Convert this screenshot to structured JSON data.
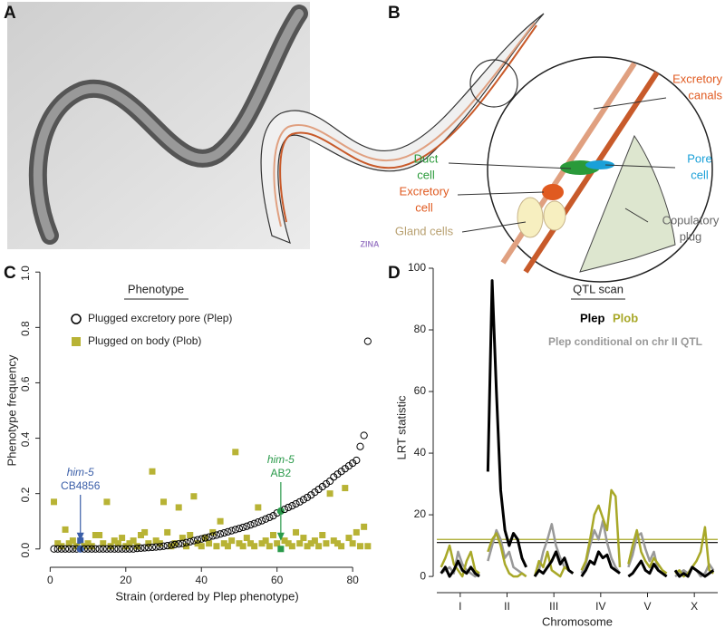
{
  "panels": {
    "a": "A",
    "b": "B",
    "c": "C",
    "d": "D"
  },
  "diagram": {
    "excretory_canals": [
      "Excretory",
      "canals"
    ],
    "pore_cell": [
      "Pore",
      "cell"
    ],
    "duct_cell": [
      "Duct",
      "cell"
    ],
    "excretory_cell": [
      "Excretory",
      "cell"
    ],
    "gland_cells": "Gland cells",
    "copulatory_plug": [
      "Copulatory",
      "plug"
    ],
    "signature": "ZINA"
  },
  "chart_data": [
    {
      "type": "scatter",
      "xlabel": "Strain (ordered by Plep phenotype)",
      "ylabel": "Phenotype frequency",
      "legend_title": "Phenotype",
      "xlim": [
        -2,
        85
      ],
      "xticks": [
        0,
        20,
        40,
        60,
        80
      ],
      "ylim": [
        -0.04,
        1.04
      ],
      "yticks": [
        {
          "value": 0,
          "label": "0.0"
        },
        0.2,
        0.4,
        0.6,
        0.8,
        {
          "value": 1,
          "label": "1.0"
        }
      ],
      "x": [
        1,
        2,
        3,
        4,
        5,
        6,
        7,
        8,
        9,
        10,
        11,
        12,
        13,
        14,
        15,
        16,
        17,
        18,
        19,
        20,
        21,
        22,
        23,
        24,
        25,
        26,
        27,
        28,
        29,
        30,
        31,
        32,
        33,
        34,
        35,
        36,
        37,
        38,
        39,
        40,
        41,
        42,
        43,
        44,
        45,
        46,
        47,
        48,
        49,
        50,
        51,
        52,
        53,
        54,
        55,
        56,
        57,
        58,
        59,
        60,
        61,
        62,
        63,
        64,
        65,
        66,
        67,
        68,
        69,
        70,
        71,
        72,
        73,
        74,
        75,
        76,
        77,
        78,
        79,
        80,
        81,
        82,
        83,
        84
      ],
      "series": [
        {
          "name": "Plugged excretory pore (Plep)",
          "color": "#000000",
          "marker": "circle",
          "values": [
            0,
            0,
            0,
            0,
            0,
            0,
            0,
            0,
            0,
            0,
            0,
            0,
            0,
            0,
            0,
            0,
            0,
            0,
            0,
            0,
            0,
            0,
            0.002,
            0.003,
            0.004,
            0.005,
            0.006,
            0.007,
            0.008,
            0.01,
            0.012,
            0.014,
            0.016,
            0.018,
            0.02,
            0.023,
            0.026,
            0.03,
            0.033,
            0.036,
            0.04,
            0.043,
            0.047,
            0.05,
            0.054,
            0.058,
            0.062,
            0.066,
            0.07,
            0.074,
            0.078,
            0.082,
            0.087,
            0.092,
            0.097,
            0.102,
            0.108,
            0.114,
            0.12,
            0.13,
            0.137,
            0.143,
            0.15,
            0.156,
            0.163,
            0.17,
            0.178,
            0.186,
            0.195,
            0.205,
            0.215,
            0.225,
            0.235,
            0.245,
            0.26,
            0.27,
            0.28,
            0.29,
            0.3,
            0.31,
            0.32,
            0.37,
            0.41,
            0.75
          ]
        },
        {
          "name": "Plugged on body (Plob)",
          "color": "#b8b335",
          "marker": "square",
          "values": [
            0.17,
            0.02,
            0.01,
            0.07,
            0.02,
            0.03,
            0.01,
            0.03,
            0.01,
            0.02,
            0.01,
            0.05,
            0.05,
            0.02,
            0.17,
            0.01,
            0.03,
            0.02,
            0.04,
            0.01,
            0.02,
            0.03,
            0.01,
            0.05,
            0.06,
            0.02,
            0.28,
            0.03,
            0.02,
            0.17,
            0.06,
            0.01,
            0.02,
            0.15,
            0.04,
            0.01,
            0.05,
            0.19,
            0.02,
            0.01,
            0.04,
            0.02,
            0.06,
            0.01,
            0.1,
            0.02,
            0.01,
            0.03,
            0.35,
            0.02,
            0.01,
            0.04,
            0.02,
            0.01,
            0.15,
            0.02,
            0.03,
            0.01,
            0.05,
            0.02,
            0,
            0.03,
            0.02,
            0.01,
            0.06,
            0.02,
            0.04,
            0.01,
            0.02,
            0.03,
            0.01,
            0.05,
            0.02,
            0.2,
            0.03,
            0.02,
            0.01,
            0.22,
            0.04,
            0.02,
            0.06,
            0.01,
            0.08,
            0.01
          ]
        }
      ],
      "annotations": [
        {
          "lines": [
            "him-5",
            "CB4856"
          ],
          "x": 8,
          "color": "#3a5ea8"
        },
        {
          "lines": [
            "him-5",
            "AB2"
          ],
          "x": 61,
          "color": "#2a9a4a"
        }
      ]
    },
    {
      "type": "line",
      "title": "QTL scan",
      "xlabel": "Chromosome",
      "ylabel": "LRT statistic",
      "xlim": [
        -1,
        65
      ],
      "xticks": [
        {
          "value": 4.5,
          "label": "I"
        },
        {
          "value": 15.5,
          "label": "II"
        },
        {
          "value": 26.5,
          "label": "III"
        },
        {
          "value": 37.5,
          "label": "IV"
        },
        {
          "value": 48.5,
          "label": "V"
        },
        {
          "value": 59.5,
          "label": "X"
        }
      ],
      "ylim": [
        -3.5,
        100
      ],
      "yticks": [
        0,
        20,
        40,
        60,
        80,
        100
      ],
      "x": [
        0,
        1,
        2,
        3,
        4,
        5,
        6,
        7,
        8,
        9,
        10,
        11,
        12,
        13,
        14,
        15,
        16,
        17,
        18,
        19,
        20,
        21,
        22,
        23,
        24,
        25,
        26,
        27,
        28,
        29,
        30,
        31,
        32,
        33,
        34,
        35,
        36,
        37,
        38,
        39,
        40,
        41,
        42,
        43,
        44,
        45,
        46,
        47,
        48,
        49,
        50,
        51,
        52,
        53,
        54,
        55,
        56,
        57,
        58,
        59,
        60,
        61,
        62,
        63,
        64
      ],
      "series": [
        {
          "name": "Plep",
          "color": "#000000",
          "values": [
            1,
            3,
            0,
            2,
            5,
            2,
            1,
            3,
            1,
            0,
            null,
            34,
            96,
            60,
            28,
            15,
            10,
            14,
            12,
            6,
            3,
            null,
            0,
            2,
            1,
            3,
            5,
            8,
            4,
            6,
            2,
            1,
            null,
            0,
            2,
            5,
            4,
            8,
            6,
            7,
            3,
            2,
            1,
            null,
            0,
            1,
            3,
            5,
            2,
            1,
            4,
            2,
            1,
            0,
            null,
            2,
            0,
            1,
            0,
            3,
            2,
            1,
            0,
            1,
            2
          ]
        },
        {
          "name": "Plob",
          "color": "#a8a828",
          "values": [
            3,
            6,
            10,
            4,
            2,
            0,
            5,
            8,
            2,
            1,
            null,
            8,
            12,
            14,
            10,
            4,
            1,
            0,
            0,
            1,
            0,
            null,
            0,
            5,
            3,
            8,
            2,
            1,
            0,
            3,
            2,
            1,
            null,
            2,
            5,
            12,
            20,
            23,
            19,
            15,
            28,
            26,
            3,
            null,
            4,
            10,
            15,
            8,
            5,
            3,
            6,
            4,
            2,
            1,
            null,
            1,
            2,
            0,
            1,
            3,
            5,
            8,
            16,
            2,
            1
          ]
        },
        {
          "name": "Plep conditional on chr II QTL",
          "color": "#999999",
          "values": [
            1,
            2,
            3,
            1,
            8,
            4,
            2,
            1,
            0,
            1,
            null,
            5,
            10,
            15,
            12,
            6,
            8,
            3,
            2,
            1,
            0,
            null,
            0,
            2,
            8,
            12,
            17,
            10,
            6,
            3,
            2,
            1,
            null,
            1,
            4,
            10,
            15,
            12,
            18,
            11,
            6,
            3,
            1,
            null,
            3,
            7,
            13,
            14,
            9,
            5,
            8,
            2,
            1,
            0,
            null,
            0,
            1,
            2,
            1,
            3,
            2,
            0,
            1,
            4,
            2
          ]
        }
      ],
      "thresholds": [
        {
          "value": 11,
          "color": "#000000"
        },
        {
          "value": 12,
          "color": "#a8a828"
        }
      ]
    }
  ]
}
